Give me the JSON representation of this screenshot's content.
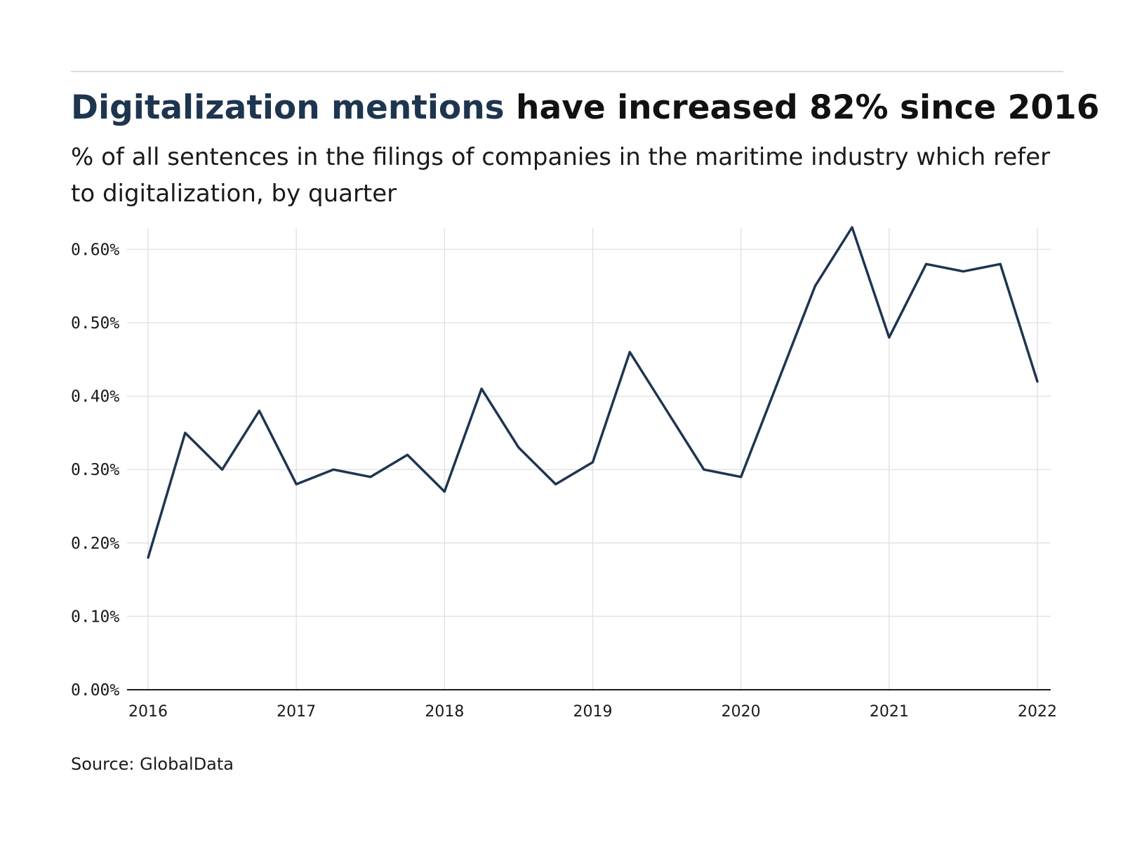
{
  "header": {
    "title_highlight": "Digitalization mentions",
    "title_rest": " have increased 82% since 2016",
    "subtitle": "% of all sentences in the filings of companies in the maritime industry which refer to digitalization, by quarter"
  },
  "footer": {
    "source": "Source: GlobalData"
  },
  "colors": {
    "line": "#1e3550",
    "grid": "#e3e3e3",
    "axis": "#1a1a1a"
  },
  "chart_data": {
    "type": "line",
    "title": "",
    "xlabel": "",
    "ylabel": "",
    "x_unit": "quarter",
    "x_ticks": [
      "2016",
      "2017",
      "2018",
      "2019",
      "2020",
      "2021",
      "2022"
    ],
    "y_ticks": [
      "0.00%",
      "0.10%",
      "0.20%",
      "0.30%",
      "0.40%",
      "0.50%",
      "0.60%"
    ],
    "ylim": [
      0,
      0.63
    ],
    "xlim": [
      "2016-Q1",
      "2022-Q1"
    ],
    "grid": true,
    "legend": "none",
    "series": [
      {
        "x": [
          "2016-Q1",
          "2016-Q2",
          "2016-Q3",
          "2016-Q4",
          "2017-Q1",
          "2017-Q2",
          "2017-Q3",
          "2017-Q4",
          "2018-Q1",
          "2018-Q2",
          "2018-Q3",
          "2018-Q4",
          "2019-Q1",
          "2019-Q2",
          "2019-Q3",
          "2019-Q4",
          "2020-Q1",
          "2020-Q2",
          "2020-Q3",
          "2020-Q4",
          "2021-Q1",
          "2021-Q2",
          "2021-Q3",
          "2021-Q4",
          "2022-Q1"
        ],
        "values": [
          0.18,
          0.35,
          0.3,
          0.38,
          0.28,
          0.3,
          0.29,
          0.32,
          0.27,
          0.41,
          0.33,
          0.28,
          0.31,
          0.46,
          0.38,
          0.3,
          0.29,
          0.42,
          0.55,
          0.63,
          0.48,
          0.58,
          0.57,
          0.58,
          0.42
        ]
      }
    ]
  }
}
